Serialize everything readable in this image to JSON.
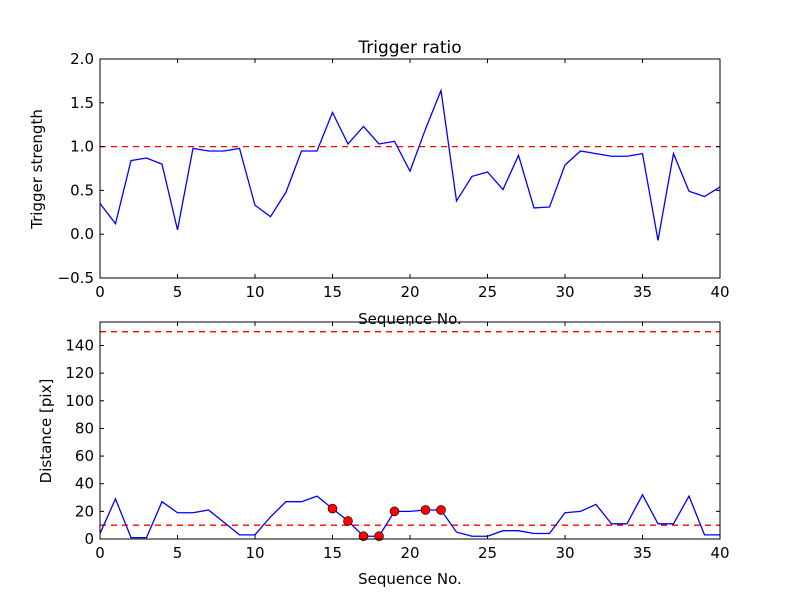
{
  "chart_data": [
    {
      "type": "line",
      "title": "Trigger ratio",
      "xlabel": "Sequence No.",
      "ylabel": "Trigger strength",
      "xlim": [
        0,
        40
      ],
      "ylim": [
        -0.5,
        2.0
      ],
      "xticks": [
        "0",
        "5",
        "10",
        "15",
        "20",
        "25",
        "30",
        "35",
        "40"
      ],
      "yticks": [
        "−0.5",
        "0.0",
        "0.5",
        "1.0",
        "1.5",
        "2.0"
      ],
      "threshold": 1.0,
      "line_color": "#0000ff",
      "threshold_color": "#ff0000",
      "x": [
        0,
        1,
        2,
        3,
        4,
        5,
        6,
        7,
        8,
        9,
        10,
        11,
        12,
        13,
        14,
        15,
        16,
        17,
        18,
        19,
        20,
        21,
        22,
        23,
        24,
        25,
        26,
        27,
        28,
        29,
        30,
        31,
        32,
        33,
        34,
        35,
        36,
        37,
        38,
        39,
        40
      ],
      "values": [
        0.35,
        0.12,
        0.84,
        0.87,
        0.8,
        0.05,
        0.98,
        0.95,
        0.95,
        0.98,
        0.33,
        0.2,
        0.48,
        0.95,
        0.95,
        1.39,
        1.03,
        1.23,
        1.03,
        1.06,
        0.72,
        1.2,
        1.64,
        0.38,
        0.66,
        0.71,
        0.51,
        0.9,
        0.3,
        0.31,
        0.79,
        0.95,
        0.92,
        0.89,
        0.89,
        0.92,
        -0.07,
        0.92,
        0.49,
        0.43,
        0.54
      ]
    },
    {
      "type": "line",
      "title": "",
      "xlabel": "Sequence No.",
      "ylabel": "Distance [pix]",
      "xlim": [
        0,
        40
      ],
      "ylim": [
        0,
        157
      ],
      "xticks": [
        "0",
        "5",
        "10",
        "15",
        "20",
        "25",
        "30",
        "35",
        "40"
      ],
      "yticks": [
        "0",
        "20",
        "40",
        "60",
        "80",
        "100",
        "120",
        "140"
      ],
      "thresholds": [
        10,
        150
      ],
      "line_color": "#0000ff",
      "threshold_color": "#ff0000",
      "marker_color": "#ff0000",
      "x": [
        0,
        1,
        2,
        3,
        4,
        5,
        6,
        7,
        8,
        9,
        10,
        11,
        12,
        13,
        14,
        15,
        16,
        17,
        18,
        19,
        20,
        21,
        22,
        23,
        24,
        25,
        26,
        27,
        28,
        29,
        30,
        31,
        32,
        33,
        34,
        35,
        36,
        37,
        38,
        39,
        40
      ],
      "values": [
        4,
        29,
        1,
        1,
        27,
        19,
        19,
        21,
        12,
        3,
        3,
        16,
        27,
        27,
        31,
        22,
        13,
        2,
        2,
        20,
        20,
        21,
        21,
        5,
        2,
        2,
        6,
        6,
        4,
        4,
        19,
        20,
        25,
        11,
        11,
        32,
        11,
        11,
        31,
        3,
        3
      ],
      "marked_x": [
        15,
        16,
        17,
        18,
        19,
        21,
        22
      ]
    }
  ]
}
